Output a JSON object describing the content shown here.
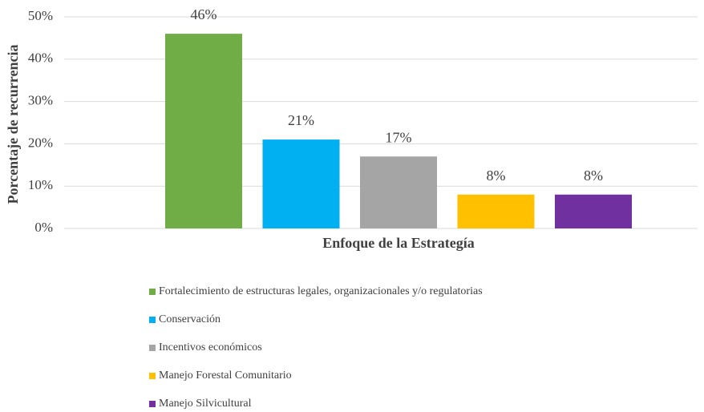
{
  "chart_data": {
    "type": "bar",
    "x_label": "Enfoque de la Estrategía",
    "y_label": "Porcentaje de recurrencia",
    "categories": [
      null
    ],
    "series": [
      {
        "name": "Fortalecimiento de estructuras legales, organizacionales y/o regulatorias",
        "color": "#70ad47",
        "values": [
          46
        ],
        "value_labels": [
          "46%"
        ]
      },
      {
        "name": "Conservación",
        "color": "#00b0f0",
        "values": [
          21
        ],
        "value_labels": [
          "21%"
        ]
      },
      {
        "name": "Incentivos económicos",
        "color": "#a5a5a5",
        "values": [
          17
        ],
        "value_labels": [
          "17%"
        ]
      },
      {
        "name": "Manejo Forestal Comunitario",
        "color": "#ffc000",
        "values": [
          8
        ],
        "value_labels": [
          "8%"
        ]
      },
      {
        "name": "Manejo Silvicultural",
        "color": "#7030a0",
        "values": [
          8
        ],
        "value_labels": [
          "8%"
        ]
      }
    ],
    "ylim": [
      0,
      50
    ],
    "yticks": [
      {
        "value": 0,
        "label": "0%"
      },
      {
        "value": 10,
        "label": "10%"
      },
      {
        "value": 20,
        "label": "20%"
      },
      {
        "value": 30,
        "label": "30%"
      },
      {
        "value": 40,
        "label": "40%"
      },
      {
        "value": 50,
        "label": "50%"
      }
    ],
    "grid": true,
    "legend": "bottom"
  }
}
